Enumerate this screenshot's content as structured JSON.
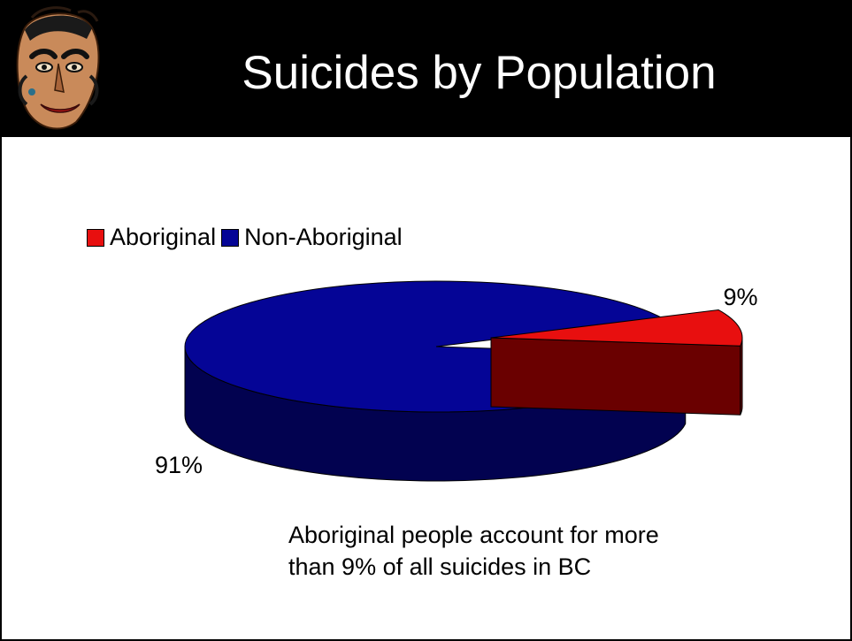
{
  "slide": {
    "title": "Suicides by Population",
    "caption_lines": [
      "Aboriginal people account for more",
      "than 9% of all suicides in BC"
    ]
  },
  "header": {
    "logo_icon": "carved-mask-icon"
  },
  "chart_data": {
    "type": "pie",
    "style": "3d-exploded",
    "slices": [
      {
        "label": "Aboriginal",
        "value": 9,
        "data_label": "9%",
        "color": "#e80f0f",
        "side_color": "#6a0000"
      },
      {
        "label": "Non-Aboriginal",
        "value": 91,
        "data_label": "91%",
        "color": "#050596",
        "side_color": "#020250"
      }
    ],
    "legend": {
      "placement": "top-left",
      "entries": [
        "Aboriginal",
        "Non-Aboriginal"
      ]
    }
  }
}
